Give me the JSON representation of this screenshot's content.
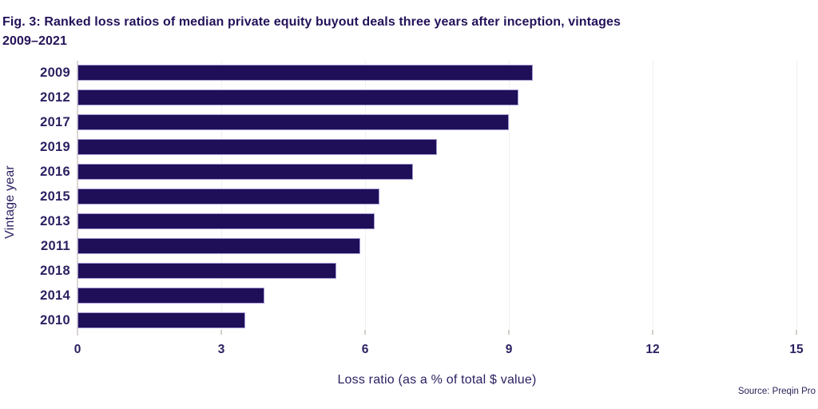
{
  "figure": {
    "title": "Fig. 3: Ranked loss ratios of median private equity buyout deals three years after inception, vintages 2009–2021",
    "source": "Source: Preqin Pro"
  },
  "chart_data": {
    "type": "bar",
    "orientation": "horizontal",
    "title": "Fig. 3: Ranked loss ratios of median private equity buyout deals three years after inception, vintages 2009–2021",
    "categories": [
      "2009",
      "2012",
      "2017",
      "2019",
      "2016",
      "2015",
      "2013",
      "2011",
      "2018",
      "2014",
      "2010"
    ],
    "values": [
      9.5,
      9.2,
      9.0,
      7.5,
      7.0,
      6.3,
      6.2,
      5.9,
      5.4,
      3.9,
      3.5
    ],
    "xlabel": "Loss ratio (as a % of total $ value)",
    "ylabel": "Vintage year",
    "xlim": [
      0,
      15
    ],
    "xticks": [
      0,
      3,
      6,
      9,
      12,
      15
    ],
    "grid": "vertical-only",
    "legend": "none",
    "bar_color": "#1f0e58",
    "bar_border_color": "#a49bd4",
    "text_color": "#2c2162",
    "title_color": "#241259",
    "source_label": "Source: Preqin Pro"
  }
}
